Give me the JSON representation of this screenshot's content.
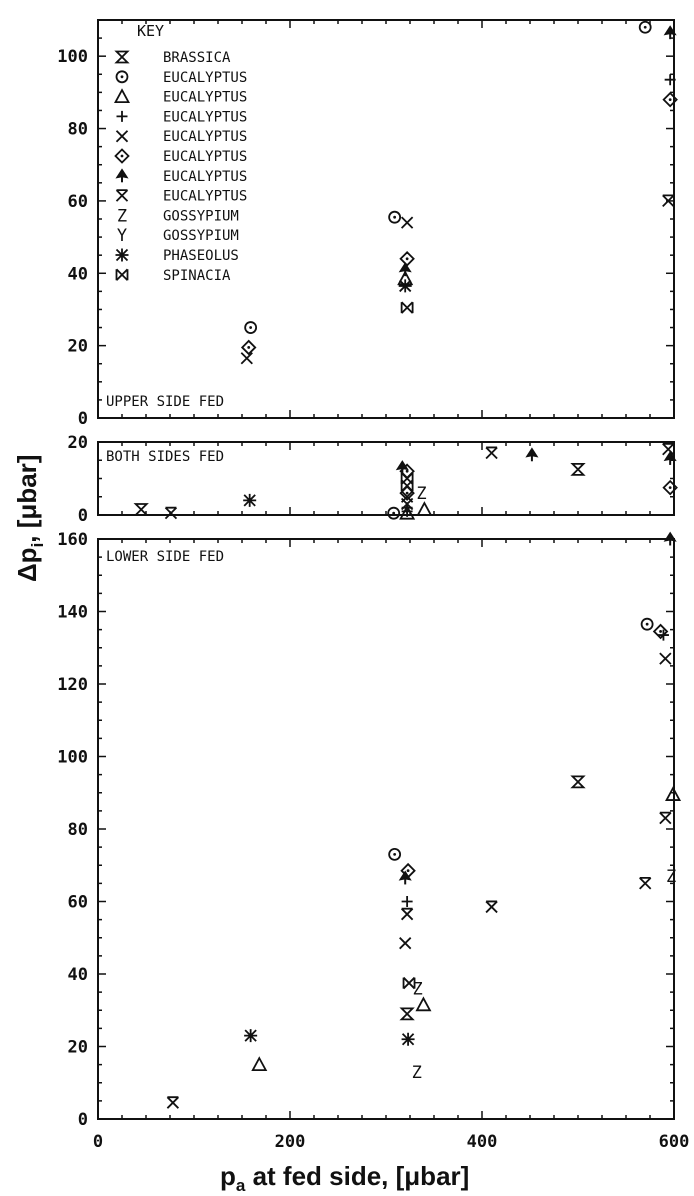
{
  "figure": {
    "ylabel": "Δp",
    "ylabel_sub": "i",
    "ylabel_unit": ", [μbar]",
    "xlabel": "p",
    "xlabel_sub": "a",
    "xlabel_rest": " at fed side, [μbar]"
  },
  "key": {
    "title": "KEY",
    "entries": [
      {
        "marker": "hourglass",
        "label": "BRASSICA"
      },
      {
        "marker": "circle-dot",
        "label": "EUCALYPTUS"
      },
      {
        "marker": "triangle",
        "label": "EUCALYPTUS"
      },
      {
        "marker": "plus",
        "label": "EUCALYPTUS"
      },
      {
        "marker": "x",
        "label": "EUCALYPTUS"
      },
      {
        "marker": "diamond-dot",
        "label": "EUCALYPTUS"
      },
      {
        "marker": "spade",
        "label": "EUCALYPTUS"
      },
      {
        "marker": "x-bar",
        "label": "EUCALYPTUS"
      },
      {
        "marker": "Z",
        "label": "GOSSYPIUM"
      },
      {
        "marker": "Y",
        "label": "GOSSYPIUM"
      },
      {
        "marker": "asterisk",
        "label": "PHASEOLUS"
      },
      {
        "marker": "x-box",
        "label": "SPINACIA"
      }
    ]
  },
  "chart_data": [
    {
      "type": "scatter",
      "panel": "upper",
      "title": "UPPER SIDE FED",
      "xlim": [
        0,
        600
      ],
      "ylim": [
        0,
        110
      ],
      "yticks": [
        0,
        20,
        40,
        60,
        80,
        100
      ],
      "series": [
        {
          "marker": "circle-dot",
          "points": [
            [
              159,
              25
            ],
            [
              309,
              55.5
            ],
            [
              570,
              108
            ]
          ]
        },
        {
          "marker": "diamond-dot",
          "points": [
            [
              157,
              19.5
            ],
            [
              322,
              44
            ],
            [
              596,
              88
            ]
          ]
        },
        {
          "marker": "x",
          "points": [
            [
              155,
              16.5
            ],
            [
              322,
              54
            ]
          ]
        },
        {
          "marker": "spade",
          "points": [
            [
              320,
              41
            ],
            [
              596,
              106.5
            ]
          ]
        },
        {
          "marker": "triangle",
          "points": [
            [
              320,
              38.5
            ]
          ]
        },
        {
          "marker": "asterisk",
          "points": [
            [
              320,
              36.5
            ]
          ]
        },
        {
          "marker": "x-box",
          "points": [
            [
              322,
              30.5
            ]
          ]
        },
        {
          "marker": "plus",
          "points": [
            [
              596,
              93.5
            ]
          ]
        },
        {
          "marker": "x-bar",
          "points": [
            [
              594,
              60
            ]
          ]
        }
      ]
    },
    {
      "type": "scatter",
      "panel": "both",
      "title": "BOTH SIDES FED",
      "xlim": [
        0,
        600
      ],
      "ylim": [
        0,
        20
      ],
      "yticks": [
        0,
        20
      ],
      "series": [
        {
          "marker": "hourglass",
          "points": [
            [
              45,
              1.5
            ]
          ]
        },
        {
          "marker": "x-bar",
          "points": [
            [
              76,
              0.5
            ],
            [
              410,
              17
            ],
            [
              594,
              18
            ]
          ]
        },
        {
          "marker": "asterisk",
          "points": [
            [
              158,
              4
            ]
          ]
        },
        {
          "marker": "circle-dot",
          "points": [
            [
              308,
              0.5
            ]
          ]
        },
        {
          "marker": "spade",
          "points": [
            [
              317,
              13
            ],
            [
              452,
              16.5
            ],
            [
              596,
              15.5
            ]
          ]
        },
        {
          "marker": "x-box",
          "points": [
            [
              322,
              10
            ],
            [
              322,
              8
            ]
          ]
        },
        {
          "marker": "diamond-dot",
          "points": [
            [
              322,
              12
            ],
            [
              322,
              6
            ],
            [
              596,
              7.5
            ]
          ]
        },
        {
          "marker": "x",
          "points": [
            [
              322,
              5
            ],
            [
              322,
              3
            ]
          ]
        },
        {
          "marker": "plus",
          "points": [
            [
              322,
              2
            ],
            [
              322,
              1
            ]
          ]
        },
        {
          "marker": "triangle",
          "points": [
            [
              322,
              0.5
            ],
            [
              340,
              1.5
            ]
          ]
        },
        {
          "marker": "Z",
          "points": [
            [
              337,
              6
            ]
          ]
        },
        {
          "marker": "hourglass",
          "points": [
            [
              500,
              12.5
            ]
          ]
        }
      ]
    },
    {
      "type": "scatter",
      "panel": "lower",
      "title": "LOWER SIDE FED",
      "xlim": [
        0,
        600
      ],
      "ylim": [
        0,
        160
      ],
      "xticks": [
        0,
        200,
        400,
        600
      ],
      "yticks": [
        0,
        20,
        40,
        60,
        80,
        100,
        120,
        140,
        160
      ],
      "series": [
        {
          "marker": "x-bar",
          "points": [
            [
              78,
              4.5
            ],
            [
              410,
              58.5
            ],
            [
              570,
              65
            ],
            [
              591,
              83
            ]
          ]
        },
        {
          "marker": "asterisk",
          "points": [
            [
              159,
              23
            ],
            [
              323,
              22
            ]
          ]
        },
        {
          "marker": "triangle",
          "points": [
            [
              168,
              15
            ],
            [
              339,
              31.5
            ],
            [
              599,
              89.5
            ]
          ]
        },
        {
          "marker": "circle-dot",
          "points": [
            [
              309,
              73
            ],
            [
              572,
              136.5
            ]
          ]
        },
        {
          "marker": "diamond-dot",
          "points": [
            [
              323,
              68.5
            ],
            [
              586,
              134.5
            ]
          ]
        },
        {
          "marker": "spade",
          "points": [
            [
              320,
              66.5
            ],
            [
              596,
              160
            ]
          ]
        },
        {
          "marker": "plus",
          "points": [
            [
              322,
              60
            ],
            [
              589,
              133.5
            ]
          ]
        },
        {
          "marker": "x-bar",
          "points": [
            [
              322,
              56.5
            ]
          ]
        },
        {
          "marker": "x",
          "points": [
            [
              320,
              48.5
            ],
            [
              591,
              127
            ]
          ]
        },
        {
          "marker": "x-box",
          "points": [
            [
              324,
              37.5
            ]
          ]
        },
        {
          "marker": "hourglass",
          "points": [
            [
              322,
              29
            ],
            [
              500,
              93
            ]
          ]
        },
        {
          "marker": "Z",
          "points": [
            [
              333,
              36
            ],
            [
              332,
              13
            ],
            [
              597,
              67
            ]
          ]
        }
      ]
    }
  ]
}
